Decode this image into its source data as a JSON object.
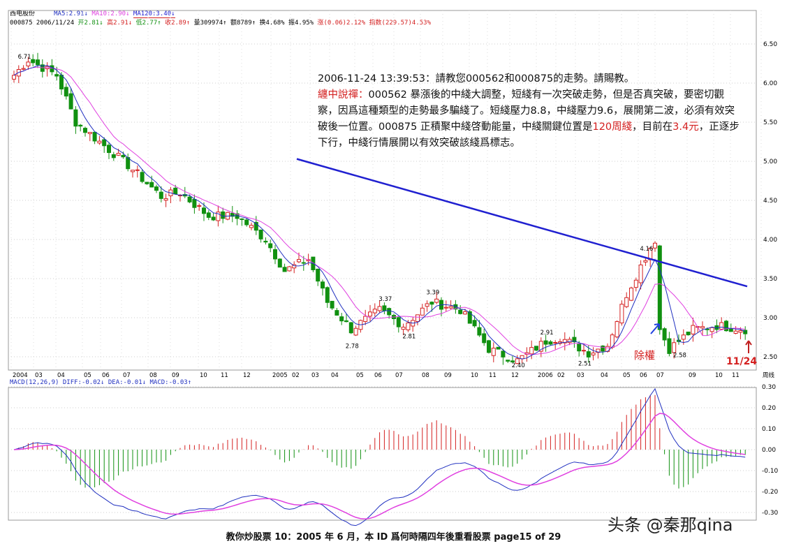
{
  "header": {
    "name": "西电股份",
    "ma5": "MA5:2.91↓",
    "ma10": "MA10:2.90↓",
    "ma120": "MA120:3.40↓",
    "line2_code": "000875 2006/11/24",
    "open": "开2.81↓",
    "high": "高2.91↓",
    "low": "低2.77↑",
    "close": "收2.89↑",
    "vol": "量309974↑",
    "amt": "额8789↑",
    "turn": "换4.68%",
    "amp": "振4.95%",
    "chg": "涨(0.06)2.12%",
    "idx": "指数(229.57)4.53%",
    "max_label": "6.71"
  },
  "note": {
    "line1": "2006-11-24 13:39:53：請教您000562和000875的走勢。請賜教。",
    "author": "纏中說禪：",
    "body1": "000562 暴漲後的中綫大調整，短綫有一次突破走勢，但是否真突破，要密切觀察，因爲這種類型的走勢最多騙綫了。短綫壓力8.8，中綫壓力9.6，展開第二波，必須有效突破後一位置。000875 正積聚中綫啓動能量，中綫關鍵位置是",
    "hl1": "120周綫",
    "body2": "，目前在",
    "hl2": "3.4元",
    "body3": "，正逐步下行，中綫行情展開以有效突破該綫爲標志。"
  },
  "macd_header": "MACD(12,26,9) DIFF:-0.02↓ DEA:-0.01↓ MACD:-0.03↑",
  "footer": "教你炒股票 10：2005 年 6 月，本 ID 爲何時隔四年後重看股票      page15 of 29",
  "watermark": "头条 @秦那qina",
  "annotations": {
    "exright": "除權",
    "date": "11/24"
  },
  "colors": {
    "up": "#d42020",
    "down": "#109010",
    "ma5": "#2030c0",
    "ma10": "#e040e0",
    "ma120": "#2020d0"
  },
  "chart_data": {
    "type": "candlestick",
    "y_ticks": [
      "6.50",
      "6.00",
      "5.50",
      "5.00",
      "4.50",
      "4.00",
      "3.50",
      "3.00",
      "2.50"
    ],
    "ylim": [
      2.3,
      6.8
    ],
    "x_ticks": [
      "2004",
      "03",
      "04",
      "05",
      "06",
      "07",
      "08",
      "09",
      "10",
      "11",
      "12",
      "2005",
      "02",
      "03",
      "04",
      "05",
      "06",
      "07",
      "08",
      "09",
      "10",
      "11",
      "12",
      "2006",
      "02",
      "03",
      "04",
      "05",
      "06",
      "07",
      "09",
      "10",
      "11",
      "周线"
    ],
    "close_waypoints": [
      [
        0,
        6.1
      ],
      [
        3,
        6.3
      ],
      [
        9,
        6.1
      ],
      [
        13,
        5.5
      ],
      [
        19,
        5.2
      ],
      [
        24,
        4.95
      ],
      [
        31,
        4.55
      ],
      [
        35,
        4.6
      ],
      [
        41,
        4.3
      ],
      [
        47,
        4.3
      ],
      [
        53,
        4.0
      ],
      [
        57,
        3.6
      ],
      [
        62,
        3.75
      ],
      [
        66,
        3.2
      ],
      [
        71,
        2.85
      ],
      [
        77,
        3.1
      ],
      [
        82,
        2.9
      ],
      [
        88,
        3.2
      ],
      [
        94,
        3.1
      ],
      [
        100,
        2.6
      ],
      [
        106,
        2.45
      ],
      [
        112,
        2.7
      ],
      [
        115,
        2.75
      ],
      [
        121,
        2.55
      ],
      [
        125,
        2.65
      ],
      [
        129,
        3.3
      ],
      [
        134,
        3.9
      ],
      [
        135,
        4.0
      ],
      [
        136,
        2.85
      ],
      [
        138,
        2.6
      ],
      [
        143,
        2.85
      ],
      [
        148,
        2.9
      ],
      [
        154,
        2.85
      ]
    ],
    "ma120": {
      "start": 5.03,
      "end": 3.4
    },
    "price_labels": [
      {
        "w": 2,
        "t": "6.71"
      },
      {
        "w": 78,
        "t": "3.37"
      },
      {
        "w": 88,
        "t": "3.39"
      },
      {
        "w": 71,
        "t": "2.78"
      },
      {
        "w": 83,
        "t": "2.81"
      },
      {
        "w": 112,
        "t": "2.91"
      },
      {
        "w": 120,
        "t": "2.51"
      },
      {
        "w": 106,
        "t": "2.40"
      },
      {
        "w": 133,
        "t": "4.16"
      },
      {
        "w": 140,
        "t": "2.58"
      }
    ],
    "macd": {
      "y_ticks": [
        "0.30",
        "0.20",
        "0.10",
        "0.00",
        "-0.10",
        "-0.20",
        "-0.30"
      ],
      "ylim": [
        -0.33,
        0.33
      ]
    }
  }
}
